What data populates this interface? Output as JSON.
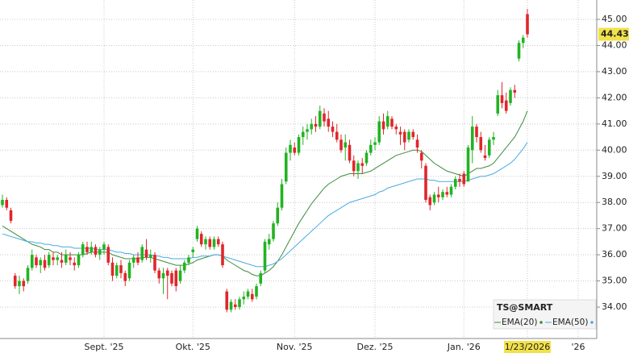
{
  "chart_data": {
    "type": "candlestick",
    "legend_title": "TS@SMART",
    "categories": [
      null,
      null,
      null,
      null,
      null,
      null,
      null,
      null,
      null,
      null,
      null,
      null,
      null,
      null,
      null,
      null,
      null,
      null,
      null,
      null,
      null,
      null,
      null,
      null,
      "Sept. '25",
      null,
      null,
      null,
      null,
      null,
      null,
      null,
      null,
      null,
      null,
      null,
      null,
      null,
      null,
      null,
      null,
      null,
      null,
      null,
      null,
      "Okt. '25",
      null,
      null,
      null,
      null,
      null,
      null,
      null,
      null,
      null,
      null,
      null,
      null,
      null,
      null,
      null,
      null,
      null,
      null,
      null,
      null,
      null,
      null,
      null,
      "Nov. '25",
      null,
      null,
      null,
      null,
      null,
      null,
      null,
      null,
      null,
      null,
      null,
      null,
      null,
      null,
      null,
      null,
      null,
      null,
      "Dez. '25",
      null,
      null,
      null,
      null,
      null,
      null,
      null,
      null,
      null,
      null,
      null,
      null,
      null,
      null,
      null,
      null,
      null,
      null,
      null,
      null,
      "Jan. '26",
      null,
      null,
      null,
      null,
      null,
      null,
      null,
      null,
      null,
      null,
      null,
      null,
      null,
      null,
      "1/23/2026",
      null,
      null,
      null,
      null,
      null,
      null,
      null,
      null,
      null,
      null,
      null,
      "'26",
      null,
      null,
      null,
      null
    ],
    "open": [
      37.9,
      38.1,
      37.7,
      35.2,
      34.8,
      35.0,
      35.0,
      35.5,
      35.9,
      35.6,
      35.8,
      35.6,
      35.9,
      35.8,
      35.8,
      35.7,
      35.9,
      35.7,
      35.6,
      36.0,
      36.3,
      36.1,
      36.3,
      36.0,
      36.2,
      36.3,
      35.7,
      35.2,
      35.6,
      35.3,
      35.1,
      35.7,
      35.9,
      35.8,
      36.2,
      35.9,
      36.0,
      35.4,
      35.1,
      35.4,
      35.3,
      35.4,
      35.0,
      35.4,
      35.7,
      36.1,
      36.6,
      36.8,
      36.4,
      36.6,
      36.3,
      36.6,
      36.4,
      34.6,
      33.9,
      34.1,
      34.0,
      34.3,
      34.4,
      34.5,
      34.4,
      34.9,
      35.4,
      36.4,
      36.6,
      37.2,
      37.8,
      38.8,
      39.9,
      40.1,
      39.9,
      40.5,
      40.7,
      40.8,
      41.0,
      40.9,
      41.4,
      41.2,
      40.9,
      40.7,
      40.4,
      40.1,
      40.2,
      39.6,
      39.2,
      39.5,
      39.5,
      39.9,
      40.2,
      40.3,
      41.1,
      40.9,
      41.2,
      40.9,
      40.7,
      40.7,
      40.4,
      40.7,
      40.4,
      39.9,
      39.4,
      38.2,
      38.0,
      38.3,
      38.2,
      38.4,
      38.3,
      38.6,
      38.9,
      39.1,
      38.8,
      40.0,
      40.9,
      40.5,
      39.8,
      39.8,
      40.4,
      41.4,
      42.1,
      41.9,
      41.8,
      42.3,
      43.5,
      44.1,
      45.2,
      null,
      null,
      null,
      null,
      null,
      null,
      null,
      null,
      null,
      null,
      null,
      null,
      null,
      null,
      null,
      null
    ],
    "high": [
      38.3,
      38.2,
      37.8,
      35.3,
      35.2,
      35.1,
      35.6,
      36.2,
      36.0,
      35.9,
      36.0,
      36.1,
      36.1,
      36.0,
      36.1,
      36.2,
      36.1,
      35.9,
      36.1,
      36.5,
      36.5,
      36.5,
      36.4,
      36.3,
      36.5,
      36.4,
      35.9,
      35.7,
      35.8,
      35.4,
      35.8,
      36.0,
      36.1,
      36.4,
      36.6,
      36.2,
      36.1,
      35.5,
      35.5,
      35.5,
      35.4,
      35.5,
      35.6,
      35.8,
      36.0,
      36.3,
      37.1,
      36.9,
      36.7,
      36.7,
      36.7,
      36.7,
      36.5,
      34.7,
      34.3,
      34.3,
      34.4,
      34.6,
      34.7,
      34.7,
      34.9,
      35.4,
      36.6,
      36.8,
      37.3,
      38.0,
      38.9,
      40.1,
      40.4,
      40.3,
      40.6,
      40.9,
      41.0,
      41.2,
      41.3,
      41.7,
      41.6,
      41.5,
      41.1,
      41.0,
      40.6,
      40.6,
      40.4,
      39.8,
      39.6,
      39.7,
      40.0,
      40.4,
      40.5,
      41.3,
      41.4,
      41.5,
      41.3,
      41.0,
      40.9,
      40.8,
      40.8,
      40.8,
      40.6,
      40.0,
      39.5,
      38.3,
      38.4,
      38.6,
      38.5,
      38.6,
      38.7,
      39.0,
      39.1,
      39.2,
      40.2,
      41.3,
      41.0,
      40.7,
      40.2,
      40.5,
      40.7,
      42.3,
      42.6,
      42.2,
      42.4,
      42.5,
      44.2,
      44.4,
      45.4,
      null,
      null,
      null,
      null,
      null,
      null,
      null,
      null,
      null,
      null,
      null,
      null,
      null,
      null,
      null,
      null
    ],
    "low": [
      37.8,
      37.7,
      37.2,
      34.7,
      34.5,
      34.6,
      34.9,
      35.4,
      35.5,
      35.3,
      35.4,
      35.5,
      35.6,
      35.6,
      35.5,
      35.6,
      35.6,
      35.4,
      35.5,
      35.9,
      36.0,
      36.0,
      35.9,
      35.8,
      36.0,
      35.6,
      35.0,
      35.1,
      35.1,
      34.8,
      35.0,
      35.5,
      35.6,
      35.7,
      35.8,
      35.7,
      35.3,
      34.9,
      34.5,
      34.3,
      34.8,
      34.6,
      34.9,
      35.3,
      35.6,
      35.9,
      36.5,
      36.3,
      36.2,
      36.2,
      36.2,
      36.3,
      35.5,
      33.8,
      33.8,
      33.9,
      33.9,
      34.1,
      34.3,
      34.2,
      34.3,
      34.8,
      35.3,
      36.2,
      36.5,
      37.1,
      37.7,
      38.7,
      39.6,
      39.8,
      39.8,
      40.2,
      40.4,
      40.6,
      40.7,
      40.8,
      40.9,
      40.7,
      40.5,
      40.3,
      39.9,
      39.6,
      39.5,
      39.0,
      38.9,
      39.1,
      39.4,
      39.8,
      40.0,
      40.2,
      40.6,
      40.8,
      40.8,
      40.6,
      40.2,
      40.0,
      40.3,
      40.4,
      39.9,
      39.3,
      38.0,
      37.7,
      37.9,
      38.0,
      38.1,
      38.2,
      38.2,
      38.5,
      38.6,
      38.6,
      38.8,
      39.5,
      40.3,
      39.9,
      39.6,
      39.7,
      40.2,
      41.3,
      41.6,
      41.4,
      41.7,
      42.0,
      43.4,
      43.9,
      44.3,
      null,
      null,
      null,
      null,
      null,
      null,
      null,
      null,
      null,
      null,
      null,
      null,
      null,
      null,
      null,
      null
    ],
    "close": [
      38.1,
      37.8,
      37.3,
      34.8,
      35.0,
      34.8,
      35.5,
      36.0,
      35.6,
      35.8,
      35.5,
      36.0,
      35.8,
      35.9,
      35.7,
      36.0,
      35.8,
      35.6,
      36.0,
      36.4,
      36.1,
      36.3,
      36.0,
      36.2,
      36.4,
      35.7,
      35.2,
      35.6,
      35.3,
      35.0,
      35.7,
      35.9,
      35.7,
      36.3,
      35.9,
      36.0,
      35.4,
      35.1,
      35.3,
      35.2,
      34.9,
      34.8,
      35.4,
      35.7,
      35.9,
      36.2,
      37.0,
      36.4,
      36.6,
      36.3,
      36.6,
      36.4,
      35.6,
      33.9,
      34.2,
      34.0,
      34.3,
      34.4,
      34.6,
      34.3,
      34.8,
      35.3,
      36.5,
      36.6,
      37.2,
      37.8,
      38.7,
      39.9,
      40.2,
      39.9,
      40.5,
      40.7,
      40.8,
      41.0,
      40.9,
      41.5,
      41.1,
      40.9,
      40.7,
      40.4,
      40.0,
      40.3,
      39.6,
      39.2,
      39.5,
      39.4,
      39.9,
      40.2,
      40.3,
      41.1,
      40.8,
      41.3,
      40.9,
      40.8,
      40.6,
      40.3,
      40.7,
      40.5,
      40.1,
      39.6,
      38.1,
      37.9,
      38.3,
      38.2,
      38.4,
      38.3,
      38.6,
      38.9,
      38.8,
      38.7,
      40.1,
      40.9,
      40.5,
      40.0,
      39.7,
      40.4,
      40.5,
      42.1,
      41.8,
      41.5,
      42.3,
      42.2,
      44.1,
      44.3,
      44.43,
      null,
      null,
      null,
      null,
      null,
      null,
      null,
      null,
      null,
      null,
      null,
      null,
      null,
      null,
      null,
      null
    ],
    "up_color": "#22b322",
    "down_color": "#e0262b",
    "series": [
      {
        "name": "EMA(20)",
        "color": "#3c8c3c",
        "values": [
          37.1,
          37.0,
          36.9,
          36.8,
          36.7,
          36.6,
          36.5,
          36.4,
          36.35,
          36.3,
          36.2,
          36.2,
          36.1,
          36.1,
          36.0,
          36.0,
          36.0,
          36.0,
          36.0,
          36.0,
          36.05,
          36.1,
          36.1,
          36.1,
          36.1,
          36.1,
          36.0,
          35.95,
          35.9,
          35.85,
          35.85,
          35.85,
          35.85,
          35.9,
          35.9,
          35.9,
          35.85,
          35.8,
          35.75,
          35.7,
          35.65,
          35.6,
          35.6,
          35.6,
          35.65,
          35.7,
          35.8,
          35.85,
          35.9,
          35.95,
          36.0,
          36.0,
          35.95,
          35.8,
          35.7,
          35.6,
          35.5,
          35.4,
          35.35,
          35.25,
          35.2,
          35.2,
          35.3,
          35.4,
          35.55,
          35.75,
          36.0,
          36.3,
          36.6,
          36.9,
          37.2,
          37.45,
          37.7,
          37.95,
          38.15,
          38.35,
          38.55,
          38.7,
          38.8,
          38.9,
          39.0,
          39.05,
          39.1,
          39.1,
          39.1,
          39.1,
          39.15,
          39.2,
          39.3,
          39.4,
          39.5,
          39.6,
          39.7,
          39.8,
          39.85,
          39.9,
          39.95,
          40.0,
          40.0,
          39.95,
          39.8,
          39.65,
          39.5,
          39.4,
          39.3,
          39.2,
          39.15,
          39.1,
          39.05,
          39.0,
          39.1,
          39.2,
          39.3,
          39.3,
          39.35,
          39.4,
          39.5,
          39.7,
          39.9,
          40.1,
          40.3,
          40.5,
          40.8,
          41.1,
          41.5,
          null,
          null,
          null,
          null,
          null,
          null,
          null,
          null,
          null,
          null,
          null,
          null,
          null,
          null,
          null,
          null
        ]
      },
      {
        "name": "EMA(50)",
        "color": "#4aaae2",
        "values": [
          36.8,
          36.75,
          36.7,
          36.65,
          36.6,
          36.55,
          36.5,
          36.5,
          36.45,
          36.45,
          36.4,
          36.4,
          36.35,
          36.35,
          36.3,
          36.3,
          36.3,
          36.25,
          36.25,
          36.25,
          36.25,
          36.25,
          36.2,
          36.2,
          36.2,
          36.2,
          36.15,
          36.1,
          36.1,
          36.05,
          36.05,
          36.0,
          36.0,
          36.0,
          36.0,
          36.0,
          35.95,
          35.95,
          35.9,
          35.9,
          35.85,
          35.85,
          35.85,
          35.85,
          35.85,
          35.9,
          35.9,
          35.95,
          35.95,
          35.95,
          36.0,
          36.0,
          35.95,
          35.9,
          35.85,
          35.8,
          35.75,
          35.7,
          35.65,
          35.6,
          35.55,
          35.55,
          35.55,
          35.6,
          35.65,
          35.75,
          35.85,
          36.0,
          36.15,
          36.3,
          36.45,
          36.6,
          36.75,
          36.9,
          37.05,
          37.2,
          37.35,
          37.5,
          37.6,
          37.7,
          37.8,
          37.9,
          38.0,
          38.05,
          38.1,
          38.15,
          38.2,
          38.25,
          38.3,
          38.4,
          38.45,
          38.55,
          38.6,
          38.65,
          38.7,
          38.75,
          38.8,
          38.85,
          38.9,
          38.9,
          38.9,
          38.85,
          38.85,
          38.8,
          38.8,
          38.8,
          38.8,
          38.8,
          38.8,
          38.8,
          38.85,
          38.9,
          38.95,
          39.0,
          39.0,
          39.05,
          39.1,
          39.2,
          39.3,
          39.4,
          39.5,
          39.65,
          39.85,
          40.05,
          40.3,
          null,
          null,
          null,
          null,
          null,
          null,
          null,
          null,
          null,
          null,
          null,
          null,
          null,
          null,
          null,
          null
        ]
      }
    ],
    "ylim": [
      32.8,
      45.74
    ],
    "yticks": [
      {
        "value": 34,
        "label": "34.00"
      },
      {
        "value": 35,
        "label": "35.00"
      },
      {
        "value": 36,
        "label": "36.00"
      },
      {
        "value": 37,
        "label": "37.00"
      },
      {
        "value": 38,
        "label": "38.00"
      },
      {
        "value": 39,
        "label": "39.00"
      },
      {
        "value": 40,
        "label": "40.00"
      },
      {
        "value": 41,
        "label": "41.00"
      },
      {
        "value": 42,
        "label": "42.00"
      },
      {
        "value": 43,
        "label": "43.00"
      },
      {
        "value": 44,
        "label": "44.00"
      },
      {
        "value": 45,
        "label": "45.00"
      }
    ],
    "grid": true
  }
}
